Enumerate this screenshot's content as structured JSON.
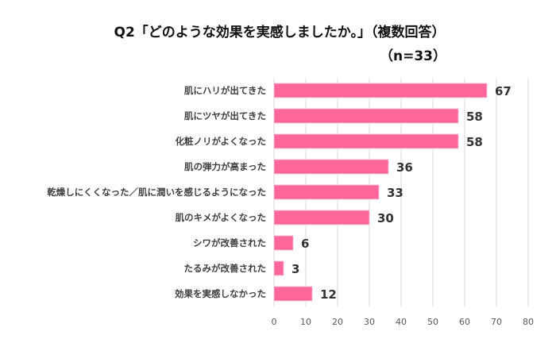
{
  "chart_data": {
    "type": "bar",
    "orientation": "horizontal",
    "title": "Q2「どのような効果を実感しましたか。」（複数回答）",
    "subtitle": "（n=33）",
    "categories": [
      "肌にハリが出てきた",
      "肌にツヤが出てきた",
      "化粧ノリがよくなった",
      "肌の弾力が高まった",
      "乾燥しにくくなった／肌に潤いを感じるようになった",
      "肌のキメがよくなった",
      "シワが改善された",
      "たるみが改善された",
      "効果を実感しなかった"
    ],
    "values": [
      67,
      58,
      58,
      36,
      33,
      30,
      6,
      3,
      12
    ],
    "xlim": [
      0,
      80
    ],
    "xticks": [
      "0",
      "10",
      "20",
      "30",
      "40",
      "50",
      "60",
      "70",
      "80"
    ],
    "grid": true,
    "bar_color": "#ff6699",
    "xlabel": "",
    "ylabel": ""
  }
}
